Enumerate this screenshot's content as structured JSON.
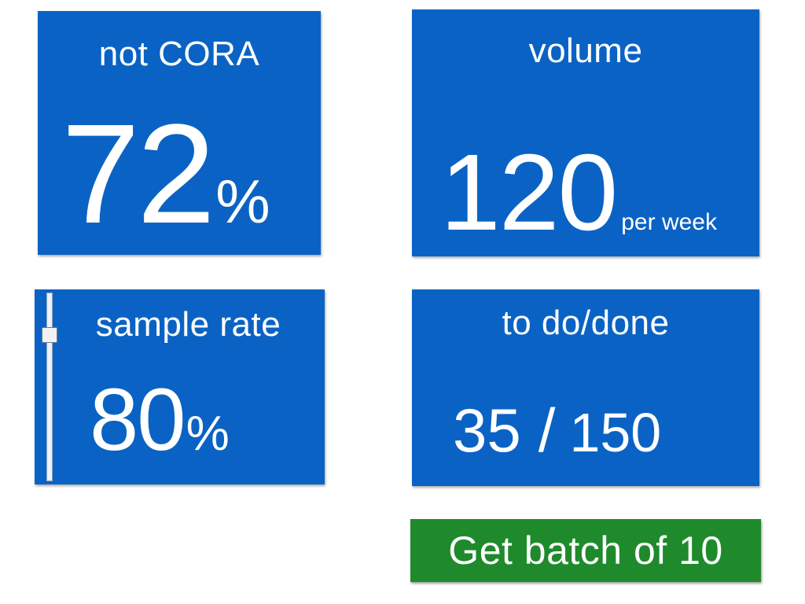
{
  "tiles": {
    "not_cora": {
      "title": "not CORA",
      "value": "72",
      "unit": "%"
    },
    "volume": {
      "title": "volume",
      "value": "120",
      "unit": "per week"
    },
    "sample_rate": {
      "title": "sample rate",
      "value": "80",
      "unit": "%",
      "slider_level": 0.8
    },
    "todo_done": {
      "title": "to do/done",
      "todo": "35",
      "separator": "/",
      "done": "150"
    }
  },
  "actions": {
    "batch_label": "Get batch of 10"
  },
  "colors": {
    "tile_bg": "#0a63c4",
    "button_bg": "#1f8a2b",
    "text": "#ffffff"
  },
  "icons": {
    "slider": "slider-handle-icon"
  }
}
